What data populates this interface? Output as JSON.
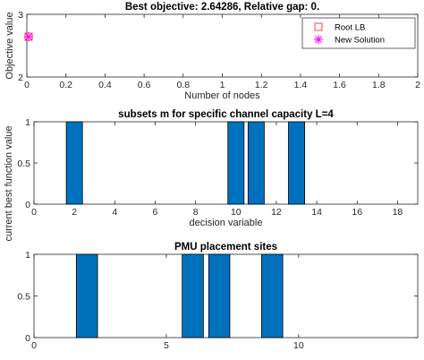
{
  "chart_data": [
    {
      "type": "scatter",
      "title": "Best objective: 2.64286, Relative gap: 0.",
      "xlabel": "Number of nodes",
      "ylabel": "Objective value",
      "xlim": [
        0,
        2
      ],
      "ylim": [
        2,
        3
      ],
      "xticks": [
        "0",
        "0.2",
        "0.4",
        "0.6",
        "0.8",
        "1",
        "1.2",
        "1.4",
        "1.6",
        "1.8",
        "2"
      ],
      "yticks": [
        "2",
        "3"
      ],
      "grid": false,
      "legend_placement": "top-right",
      "series": [
        {
          "name": "Root LB",
          "marker": "square",
          "color": "#ff4040",
          "points": [
            [
              0,
              2.64286
            ]
          ]
        },
        {
          "name": "New Solution",
          "marker": "asterisk",
          "color": "#ff00ff",
          "points": [
            [
              0,
              2.64286
            ]
          ]
        }
      ]
    },
    {
      "type": "bar",
      "title": "subsets m for specific channel capacity L=4",
      "xlabel": "decision variable",
      "ylabel": "",
      "xlim": [
        0,
        19
      ],
      "ylim": [
        0,
        1
      ],
      "xticks": [
        "0",
        "2",
        "4",
        "6",
        "8",
        "10",
        "12",
        "14",
        "16",
        "18"
      ],
      "yticks": [
        "0",
        "0.5",
        "1"
      ],
      "color": "#0072bd",
      "x": [
        2,
        10,
        11,
        13
      ],
      "values": [
        1,
        1,
        1,
        1
      ]
    },
    {
      "type": "bar",
      "title": "PMU placement sites",
      "xlabel": "",
      "ylabel": "",
      "xlim": [
        0,
        14.5
      ],
      "ylim": [
        0,
        1
      ],
      "xticks": [
        "0",
        "5",
        "10",
        "15"
      ],
      "yticks": [
        "0",
        "0.5",
        "1"
      ],
      "color": "#0072bd",
      "x": [
        2,
        6,
        7,
        9
      ],
      "values": [
        1,
        1,
        1,
        1
      ]
    }
  ],
  "shared_ylabel": "current best function value"
}
